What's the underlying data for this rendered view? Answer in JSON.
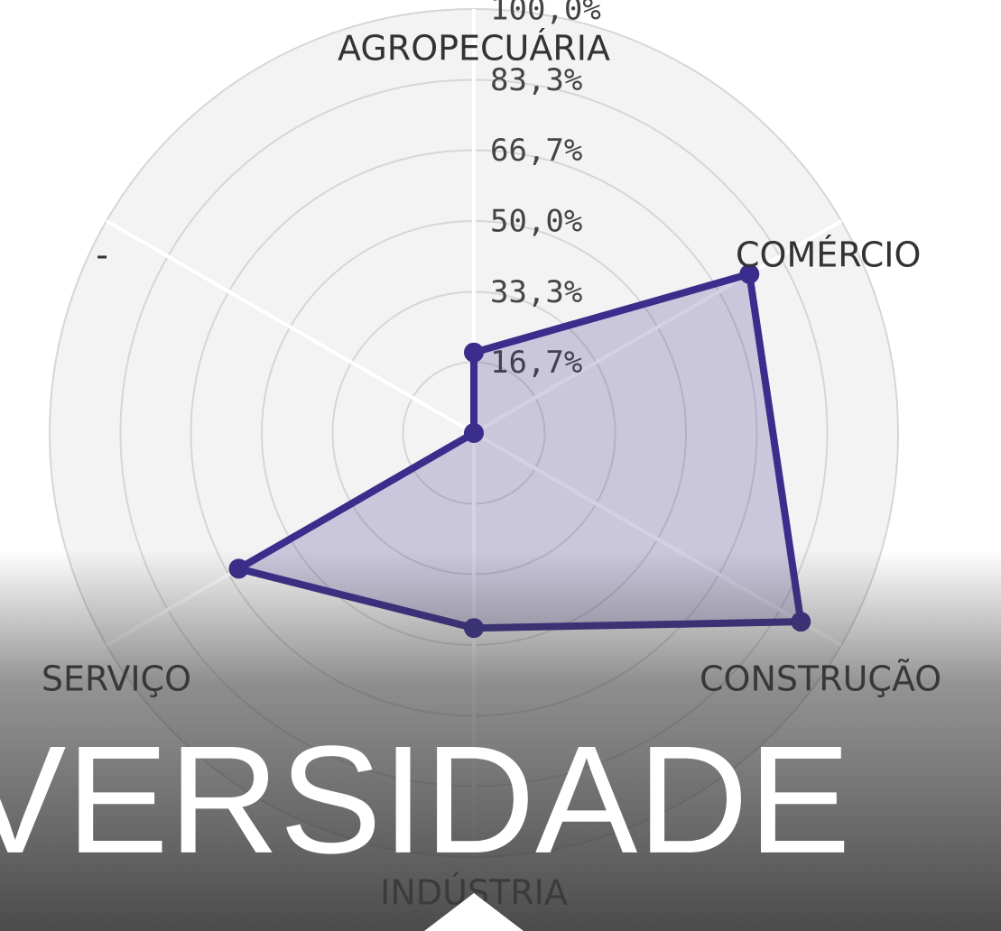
{
  "chart_data": {
    "type": "radar",
    "categories": [
      "AGROPECUÁRIA",
      "COMÉRCIO",
      "CONSTRUÇÃO",
      "INDÚSTRIA",
      "SERVIÇO",
      "-"
    ],
    "series": [
      {
        "name": null,
        "color": "#3a2d8c",
        "values": [
          19,
          75,
          89,
          46,
          64,
          0
        ]
      }
    ],
    "rlim": [
      0,
      100
    ],
    "rticks": [
      {
        "value": 16.7,
        "label": "16,7%"
      },
      {
        "value": 33.3,
        "label": "33,3%"
      },
      {
        "value": 50,
        "label": "50,0%"
      },
      {
        "value": 66.7,
        "label": "66,7%"
      },
      {
        "value": 83.3,
        "label": "83,3%"
      },
      {
        "value": 100,
        "label": "100,0%"
      }
    ],
    "grid": true,
    "overlay_text": "VERSIDADE"
  }
}
